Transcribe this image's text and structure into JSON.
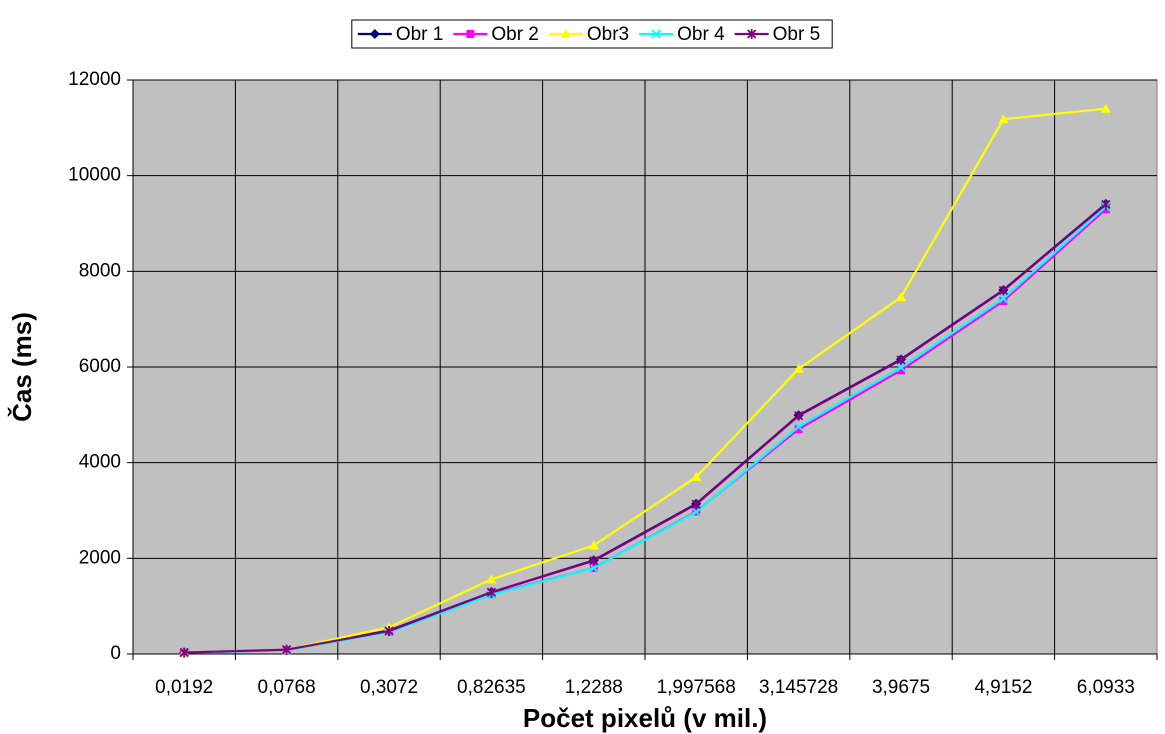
{
  "chart_data": {
    "type": "line",
    "x_label": "Počet pixelů (v mil.)",
    "y_label": "Čas (ms)",
    "categories": [
      "0,0192",
      "0,0768",
      "0,3072",
      "0,82635",
      "1,2288",
      "1,997568",
      "3,145728",
      "3,9675",
      "4,9152",
      "6,0933"
    ],
    "series": [
      {
        "name": "Obr 1",
        "color": "#000080",
        "marker": "diamond",
        "values": [
          30,
          90,
          490,
          1290,
          1960,
          3140,
          4990,
          6160,
          7610,
          9410
        ]
      },
      {
        "name": "Obr 2",
        "color": "#ff00ff",
        "marker": "square",
        "values": [
          30,
          80,
          470,
          1250,
          1800,
          2980,
          4700,
          5930,
          7380,
          9300
        ]
      },
      {
        "name": "Obr3",
        "color": "#ffff00",
        "marker": "triangle",
        "values": [
          30,
          90,
          560,
          1560,
          2270,
          3700,
          5960,
          7460,
          11180,
          11400
        ]
      },
      {
        "name": "Obr 4",
        "color": "#00ffff",
        "marker": "x",
        "values": [
          30,
          80,
          460,
          1240,
          1800,
          2970,
          4750,
          5990,
          7430,
          9350
        ]
      },
      {
        "name": "Obr 5",
        "color": "#800080",
        "marker": "asterisk",
        "values": [
          30,
          90,
          480,
          1290,
          1950,
          3130,
          4980,
          6150,
          7600,
          9400
        ]
      }
    ],
    "ylim": [
      0,
      12000
    ],
    "yticks": [
      0,
      2000,
      4000,
      6000,
      8000,
      10000,
      12000
    ],
    "grid": true,
    "legend": "top",
    "plot_background": "#c0c0c0"
  }
}
